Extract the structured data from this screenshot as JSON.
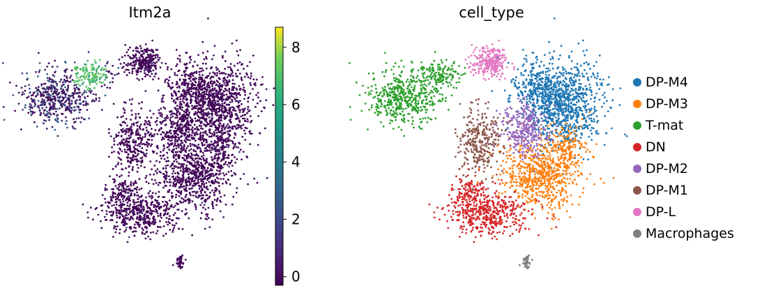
{
  "chart_data": [
    {
      "type": "scatter",
      "title": "Itm2a",
      "color_by": "Itm2a expression",
      "colormap": "viridis",
      "colorbar": {
        "range": [
          -0.3,
          8.7
        ],
        "ticks": [
          0,
          2,
          4,
          6,
          8
        ],
        "tick_labels": [
          "0",
          "2",
          "4",
          "6",
          "8"
        ]
      },
      "axes_visible": false,
      "grid": false,
      "high_expression_region": "T-mat cluster (upper-left, values ~5-7)",
      "low_expression_regions": "DP and DN clusters (~0)"
    },
    {
      "type": "scatter",
      "title": "cell_type",
      "axes_visible": false,
      "grid": false,
      "legend_position": "right",
      "categories": [
        {
          "name": "DP-M4",
          "color": "#1f77b4"
        },
        {
          "name": "DP-M3",
          "color": "#ff7f0e"
        },
        {
          "name": "T-mat",
          "color": "#2ca02c"
        },
        {
          "name": "DN",
          "color": "#d62728"
        },
        {
          "name": "DP-M2",
          "color": "#9467bd"
        },
        {
          "name": "DP-M1",
          "color": "#8c564b"
        },
        {
          "name": "DP-L",
          "color": "#e377c2"
        },
        {
          "name": "Macrophages",
          "color": "#7f7f7f"
        }
      ]
    }
  ]
}
